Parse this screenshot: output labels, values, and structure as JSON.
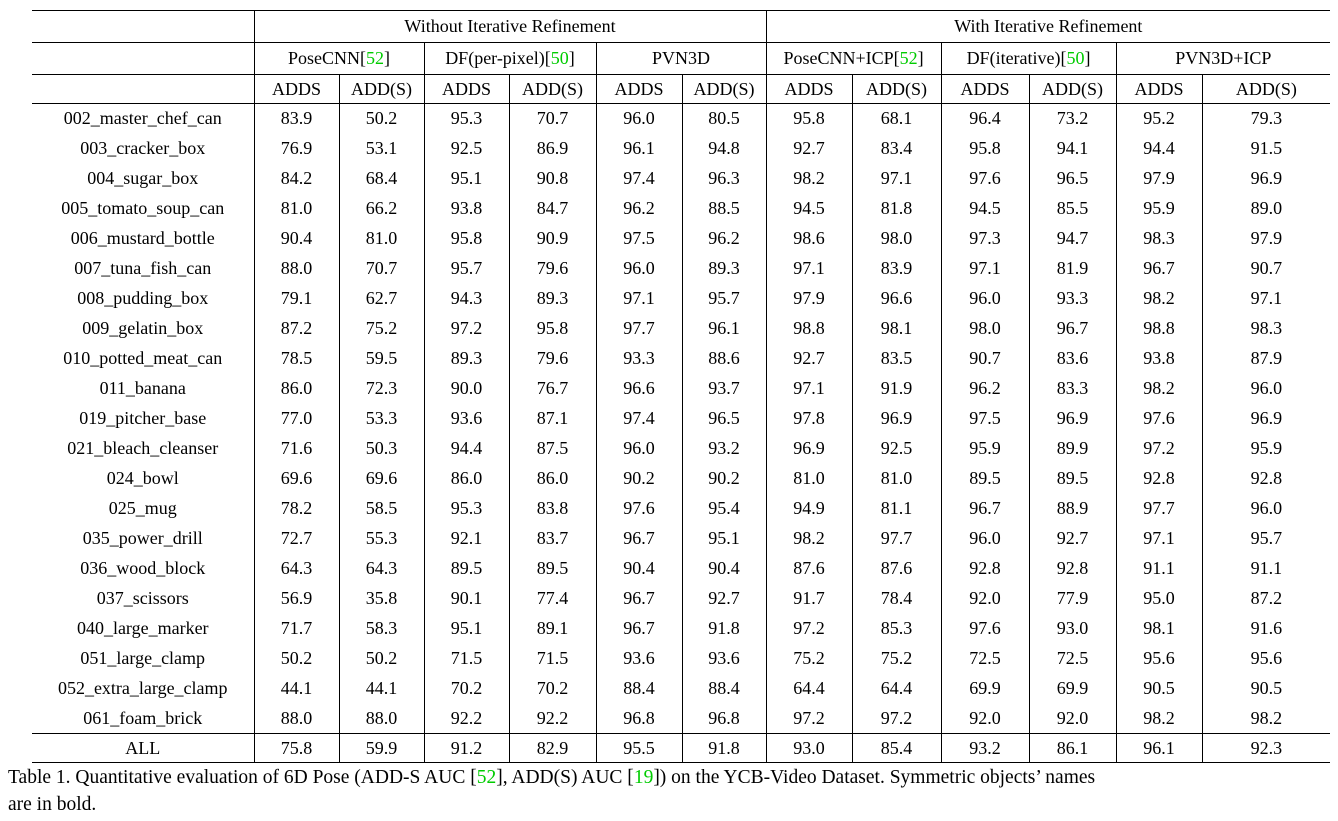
{
  "colors": {
    "citation_green": "#00cc00"
  },
  "table": {
    "group_headers": [
      "Without Iterative Refinement",
      "With Iterative Refinement"
    ],
    "methods": [
      {
        "name": "PoseCNN",
        "cite": "52"
      },
      {
        "name": "DF(per-pixel)",
        "cite": "50"
      },
      {
        "name": "PVN3D",
        "cite": null
      },
      {
        "name": "PoseCNN+ICP",
        "cite": "52"
      },
      {
        "name": "DF(iterative)",
        "cite": "50"
      },
      {
        "name": "PVN3D+ICP",
        "cite": null
      }
    ],
    "metrics": [
      "ADDS",
      "ADD(S)"
    ],
    "rows": [
      {
        "name": "002_master_chef_can",
        "name_bold": false,
        "values": [
          "83.9",
          "50.2",
          "95.3",
          "70.7",
          "96.0",
          "80.5",
          "95.8",
          "68.1",
          "96.4",
          "73.2",
          "95.2",
          "79.3"
        ],
        "bold": [
          5,
          8
        ]
      },
      {
        "name": "003_cracker_box",
        "name_bold": false,
        "values": [
          "76.9",
          "53.1",
          "92.5",
          "86.9",
          "96.1",
          "94.8",
          "92.7",
          "83.4",
          "95.8",
          "94.1",
          "94.4",
          "91.5"
        ],
        "bold": [
          4,
          5
        ]
      },
      {
        "name": "004_sugar_box",
        "name_bold": false,
        "values": [
          "84.2",
          "68.4",
          "95.1",
          "90.8",
          "97.4",
          "96.3",
          "98.2",
          "97.1",
          "97.6",
          "96.5",
          "97.9",
          "96.9"
        ],
        "bold": [
          6,
          7
        ]
      },
      {
        "name": "005_tomato_soup_can",
        "name_bold": false,
        "values": [
          "81.0",
          "66.2",
          "93.8",
          "84.7",
          "96.2",
          "88.5",
          "94.5",
          "81.8",
          "94.5",
          "85.5",
          "95.9",
          "89.0"
        ],
        "bold": [
          4,
          11
        ]
      },
      {
        "name": "006_mustard_bottle",
        "name_bold": false,
        "values": [
          "90.4",
          "81.0",
          "95.8",
          "90.9",
          "97.5",
          "96.2",
          "98.6",
          "98.0",
          "97.3",
          "94.7",
          "98.3",
          "97.9"
        ],
        "bold": [
          6,
          7
        ]
      },
      {
        "name": "007_tuna_fish_can",
        "name_bold": false,
        "values": [
          "88.0",
          "70.7",
          "95.7",
          "79.6",
          "96.0",
          "89.3",
          "97.1",
          "83.9",
          "97.1",
          "81.9",
          "96.7",
          "90.7"
        ],
        "bold": [
          6,
          8,
          11
        ]
      },
      {
        "name": "008_pudding_box",
        "name_bold": false,
        "values": [
          "79.1",
          "62.7",
          "94.3",
          "89.3",
          "97.1",
          "95.7",
          "97.9",
          "96.6",
          "96.0",
          "93.3",
          "98.2",
          "97.1"
        ],
        "bold": [
          10,
          11
        ]
      },
      {
        "name": "009_gelatin_box",
        "name_bold": false,
        "values": [
          "87.2",
          "75.2",
          "97.2",
          "95.8",
          "97.7",
          "96.1",
          "98.8",
          "98.1",
          "98.0",
          "96.7",
          "98.8",
          "98.3"
        ],
        "bold": [
          10,
          11
        ]
      },
      {
        "name": "010_potted_meat_can",
        "name_bold": false,
        "values": [
          "78.5",
          "59.5",
          "89.3",
          "79.6",
          "93.3",
          "88.6",
          "92.7",
          "83.5",
          "90.7",
          "83.6",
          "93.8",
          "87.9"
        ],
        "bold": [
          5,
          10
        ]
      },
      {
        "name": "011_banana",
        "name_bold": false,
        "values": [
          "86.0",
          "72.3",
          "90.0",
          "76.7",
          "96.6",
          "93.7",
          "97.1",
          "91.9",
          "96.2",
          "83.3",
          "98.2",
          "96.0"
        ],
        "bold": [
          10,
          11
        ]
      },
      {
        "name": "019_pitcher_base",
        "name_bold": false,
        "values": [
          "77.0",
          "53.3",
          "93.6",
          "87.1",
          "97.4",
          "96.5",
          "97.8",
          "96.9",
          "97.5",
          "96.9",
          "97.6",
          "96.9"
        ],
        "bold": [
          6,
          11
        ]
      },
      {
        "name": "021_bleach_cleanser",
        "name_bold": false,
        "values": [
          "71.6",
          "50.3",
          "94.4",
          "87.5",
          "96.0",
          "93.2",
          "96.9",
          "92.5",
          "95.9",
          "89.9",
          "97.2",
          "95.9"
        ],
        "bold": [
          10,
          11
        ]
      },
      {
        "name": "024_bowl",
        "name_bold": true,
        "values": [
          "69.6",
          "69.6",
          "86.0",
          "86.0",
          "90.2",
          "90.2",
          "81.0",
          "81.0",
          "89.5",
          "89.5",
          "92.8",
          "92.8"
        ],
        "bold": [
          10,
          11
        ]
      },
      {
        "name": "025_mug",
        "name_bold": false,
        "values": [
          "78.2",
          "58.5",
          "95.3",
          "83.8",
          "97.6",
          "95.4",
          "94.9",
          "81.1",
          "96.7",
          "88.9",
          "97.7",
          "96.0"
        ],
        "bold": [
          10,
          11
        ]
      },
      {
        "name": "035_power_drill",
        "name_bold": false,
        "values": [
          "72.7",
          "55.3",
          "92.1",
          "83.7",
          "96.7",
          "95.1",
          "98.2",
          "97.7",
          "96.0",
          "92.7",
          "97.1",
          "95.7"
        ],
        "bold": [
          6,
          7
        ]
      },
      {
        "name": "036_wood_block",
        "name_bold": true,
        "values": [
          "64.3",
          "64.3",
          "89.5",
          "89.5",
          "90.4",
          "90.4",
          "87.6",
          "87.6",
          "92.8",
          "92.8",
          "91.1",
          "91.1"
        ],
        "bold": [
          8,
          9
        ]
      },
      {
        "name": "037_scissors",
        "name_bold": false,
        "values": [
          "56.9",
          "35.8",
          "90.1",
          "77.4",
          "96.7",
          "92.7",
          "91.7",
          "78.4",
          "92.0",
          "77.9",
          "95.0",
          "87.2"
        ],
        "bold": [
          4,
          5
        ]
      },
      {
        "name": "040_large_marker",
        "name_bold": false,
        "values": [
          "71.7",
          "58.3",
          "95.1",
          "89.1",
          "96.7",
          "91.8",
          "97.2",
          "85.3",
          "97.6",
          "93.0",
          "98.1",
          "91.6"
        ],
        "bold": [
          9,
          10
        ]
      },
      {
        "name": "051_large_clamp",
        "name_bold": true,
        "values": [
          "50.2",
          "50.2",
          "71.5",
          "71.5",
          "93.6",
          "93.6",
          "75.2",
          "75.2",
          "72.5",
          "72.5",
          "95.6",
          "95.6"
        ],
        "bold": [
          10,
          11
        ]
      },
      {
        "name": "052_extra_large_clamp",
        "name_bold": true,
        "values": [
          "44.1",
          "44.1",
          "70.2",
          "70.2",
          "88.4",
          "88.4",
          "64.4",
          "64.4",
          "69.9",
          "69.9",
          "90.5",
          "90.5"
        ],
        "bold": [
          10,
          11
        ]
      },
      {
        "name": "061_foam_brick",
        "name_bold": true,
        "values": [
          "88.0",
          "88.0",
          "92.2",
          "92.2",
          "96.8",
          "96.8",
          "97.2",
          "97.2",
          "92.0",
          "92.0",
          "98.2",
          "98.2"
        ],
        "bold": [
          10,
          11
        ]
      }
    ],
    "footer": {
      "name": "ALL",
      "name_bold": false,
      "values": [
        "75.8",
        "59.9",
        "91.2",
        "82.9",
        "95.5",
        "91.8",
        "93.0",
        "85.4",
        "93.2",
        "86.1",
        "96.1",
        "92.3"
      ],
      "bold": [
        10,
        11
      ]
    }
  },
  "caption": {
    "line1_parts": [
      {
        "text": "Table 1. Quantitative evaluation of 6D Pose (ADD-S AUC ["
      },
      {
        "text": "52",
        "green": true
      },
      {
        "text": "], ADD(S) AUC ["
      },
      {
        "text": "19",
        "green": true
      },
      {
        "text": "]) on the YCB-Video Dataset. Symmetric objects’ names"
      }
    ],
    "line2": "are in bold."
  }
}
